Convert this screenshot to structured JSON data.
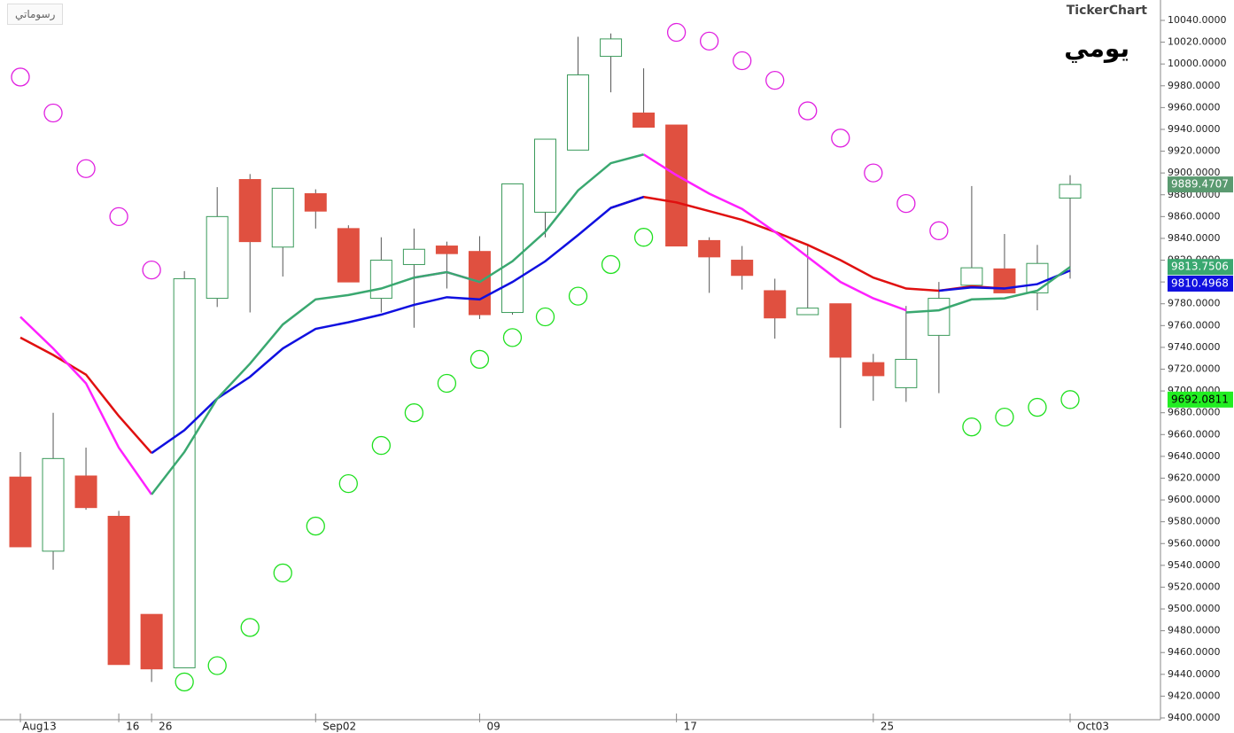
{
  "header": {
    "logo": "TickerChart",
    "period": "يومي",
    "my_charts": "رسوماتي"
  },
  "chart_data": {
    "type": "candlestick",
    "categories": [
      "Aug13",
      null,
      null,
      "16",
      "26",
      null,
      null,
      null,
      null,
      "Sep02",
      null,
      null,
      null,
      null,
      "09",
      null,
      null,
      null,
      null,
      null,
      "17",
      null,
      null,
      null,
      null,
      null,
      "25",
      null,
      null,
      null,
      null,
      null,
      "Oct03"
    ],
    "open": [
      9621,
      9553,
      9622,
      9585,
      9495,
      9446,
      9785,
      9894,
      9832,
      9881,
      9849,
      9785,
      9816,
      9833,
      9828,
      9772,
      9864,
      9921,
      10007,
      9955,
      9944,
      9838,
      9820,
      9792,
      9770,
      9780,
      9726,
      9703,
      9751,
      9797,
      9812,
      9790,
      9877
    ],
    "high": [
      9644,
      9680,
      9648,
      9590,
      9495,
      9810,
      9887,
      9899,
      9886,
      9885,
      9852,
      9841,
      9849,
      9837,
      9842,
      9890,
      9931,
      10025,
      10028,
      9996,
      9944,
      9841,
      9833,
      9803,
      9834,
      9780,
      9734,
      9778,
      9800,
      9888,
      9844,
      9834,
      9898
    ],
    "low": [
      9557,
      9536,
      9591,
      9449,
      9433,
      9446,
      9777,
      9772,
      9805,
      9849,
      9800,
      9772,
      9758,
      9794,
      9766,
      9770,
      9841,
      9921,
      9974,
      9942,
      9833,
      9790,
      9793,
      9748,
      9770,
      9666,
      9691,
      9690,
      9698,
      9797,
      9790,
      9774,
      9803
    ],
    "close": [
      9557,
      9638,
      9593,
      9449,
      9445,
      9803,
      9860,
      9837,
      9886,
      9865,
      9800,
      9820,
      9830,
      9826,
      9770,
      9890,
      9931,
      9990,
      10023,
      9942,
      9833,
      9823,
      9806,
      9767,
      9776,
      9731,
      9714,
      9729,
      9785,
      9813,
      9790,
      9817,
      9889.4707
    ],
    "close_label": "9889.4707",
    "up_color": "#3a9a5a",
    "down_color": "#e05040",
    "wick_color": "#555555",
    "series": [
      {
        "name": "MA red",
        "color": "#e01010",
        "values": [
          9749,
          9733,
          9715,
          9677,
          9643,
          null,
          null,
          null,
          null,
          null,
          null,
          null,
          null,
          null,
          null,
          null,
          null,
          null,
          9868,
          9878,
          9873,
          9865,
          9857,
          9846,
          9834,
          9820,
          9804,
          9794,
          9792,
          9796,
          9794,
          null,
          null
        ]
      },
      {
        "name": "MA magenta",
        "color": "#ff20ff",
        "values": [
          9768,
          9739,
          9707,
          9648,
          9605,
          null,
          null,
          null,
          null,
          null,
          null,
          null,
          9804,
          9809,
          9800,
          null,
          null,
          null,
          null,
          9917,
          9898,
          9881,
          9867,
          9846,
          9823,
          9800,
          9785,
          9774,
          null,
          null,
          null,
          null,
          null
        ]
      },
      {
        "name": "MA blue",
        "color": "#1010e0",
        "label": "9810.4968",
        "values": [
          null,
          null,
          null,
          null,
          9643,
          9664,
          9693,
          9713,
          9739,
          9757,
          9763,
          9770,
          9779,
          9786,
          9784,
          9800,
          9819,
          9843,
          9868,
          9878,
          null,
          null,
          null,
          null,
          null,
          null,
          null,
          null,
          9792,
          9795,
          9794,
          9798,
          9810.4968
        ]
      },
      {
        "name": "MA green",
        "color": "#3aa870",
        "label": "9813.7506",
        "values": [
          null,
          null,
          null,
          null,
          9605,
          9644,
          9693,
          9725,
          9761,
          9784,
          9788,
          9794,
          9804,
          9809,
          9800,
          9819,
          9846,
          9884,
          9909,
          9917,
          null,
          null,
          null,
          null,
          null,
          null,
          null,
          9772,
          9774,
          9784,
          9785,
          9792,
          9813.7506
        ]
      }
    ],
    "psar": [
      9988,
      9955,
      9904,
      9860,
      9811,
      9433,
      9448,
      9483,
      9533,
      9576,
      9615,
      9650,
      9680,
      9707,
      9729,
      9749,
      9768,
      9787,
      9816,
      9841,
      10029,
      10021,
      10003,
      9985,
      9957,
      9932,
      9900,
      9872,
      9847,
      9667,
      9676,
      9685,
      9692.0811
    ],
    "psar_label": "9692.0811",
    "psar_up_color": "#20e020",
    "psar_down_color": "#e020e0",
    "ylim": [
      9400,
      10040
    ],
    "yticks": [
      {
        "value": 9400,
        "label": "9400.0000"
      },
      {
        "value": 9420,
        "label": "9420.0000"
      },
      {
        "value": 9440,
        "label": "9440.0000"
      },
      {
        "value": 9460,
        "label": "9460.0000"
      },
      {
        "value": 9480,
        "label": "9480.0000"
      },
      {
        "value": 9500,
        "label": "9500.0000"
      },
      {
        "value": 9520,
        "label": "9520.0000"
      },
      {
        "value": 9540,
        "label": "9540.0000"
      },
      {
        "value": 9560,
        "label": "9560.0000"
      },
      {
        "value": 9580,
        "label": "9580.0000"
      },
      {
        "value": 9600,
        "label": "9600.0000"
      },
      {
        "value": 9620,
        "label": "9620.0000"
      },
      {
        "value": 9640,
        "label": "9640.0000"
      },
      {
        "value": 9660,
        "label": "9660.0000"
      },
      {
        "value": 9680,
        "label": "9680.0000"
      },
      {
        "value": 9700,
        "label": "9700.0000"
      },
      {
        "value": 9720,
        "label": "9720.0000"
      },
      {
        "value": 9740,
        "label": "9740.0000"
      },
      {
        "value": 9760,
        "label": "9760.0000"
      },
      {
        "value": 9780,
        "label": "9780.0000"
      },
      {
        "value": 9800,
        "label": "9800.0000"
      },
      {
        "value": 9820,
        "label": "9820.0000"
      },
      {
        "value": 9840,
        "label": "9840.0000"
      },
      {
        "value": 9860,
        "label": "9860.0000"
      },
      {
        "value": 9880,
        "label": "9880.0000"
      },
      {
        "value": 9900,
        "label": "9900.0000"
      },
      {
        "value": 9920,
        "label": "9920.0000"
      },
      {
        "value": 9940,
        "label": "9940.0000"
      },
      {
        "value": 9960,
        "label": "9960.0000"
      },
      {
        "value": 9980,
        "label": "9980.0000"
      },
      {
        "value": 10000,
        "label": "10000.0000"
      },
      {
        "value": 10020,
        "label": "10020.0000"
      },
      {
        "value": 10040,
        "label": "10040.0000"
      }
    ]
  }
}
